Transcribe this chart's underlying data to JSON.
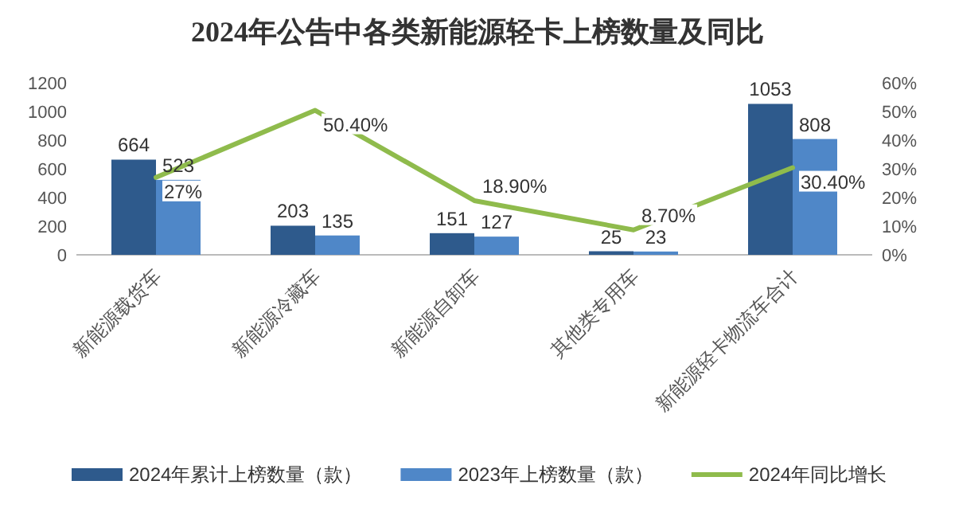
{
  "chart_data": {
    "type": "bar",
    "title": "2024年公告中各类新能源轻卡上榜数量及同比",
    "categories": [
      "新能源载货车",
      "新能源冷藏车",
      "新能源自卸车",
      "其他类专用车",
      "新能源轻卡物流车合计"
    ],
    "series": [
      {
        "name": "2024年累计上榜数量（款）",
        "color": "#2e5a8c",
        "values": [
          664,
          203,
          151,
          25,
          1053
        ],
        "value_labels": [
          "664",
          "203",
          "151",
          "25",
          "1053"
        ]
      },
      {
        "name": "2023年上榜数量（款）",
        "color": "#4f87c8",
        "values": [
          523,
          135,
          127,
          23,
          808
        ],
        "value_labels": [
          "523",
          "135",
          "127",
          "23",
          "808"
        ]
      },
      {
        "name": "2024年同比增长",
        "type": "line",
        "axis": "y2",
        "color": "#8fbb4c",
        "values": [
          27,
          50.4,
          18.9,
          8.7,
          30.4
        ],
        "value_labels": [
          "27%",
          "50.40%",
          "18.90%",
          "8.70%",
          "30.40%"
        ]
      }
    ],
    "ylim": [
      0,
      1200
    ],
    "yticks": [
      0,
      200,
      400,
      600,
      800,
      1000,
      1200
    ],
    "y2lim": [
      0,
      60
    ],
    "y2ticks": [
      {
        "value": 0,
        "label": "0%"
      },
      {
        "value": 10,
        "label": "10%"
      },
      {
        "value": 20,
        "label": "20%"
      },
      {
        "value": 30,
        "label": "30%"
      },
      {
        "value": 40,
        "label": "40%"
      },
      {
        "value": 50,
        "label": "50%"
      },
      {
        "value": 60,
        "label": "60%"
      }
    ],
    "legend": "bottom"
  }
}
